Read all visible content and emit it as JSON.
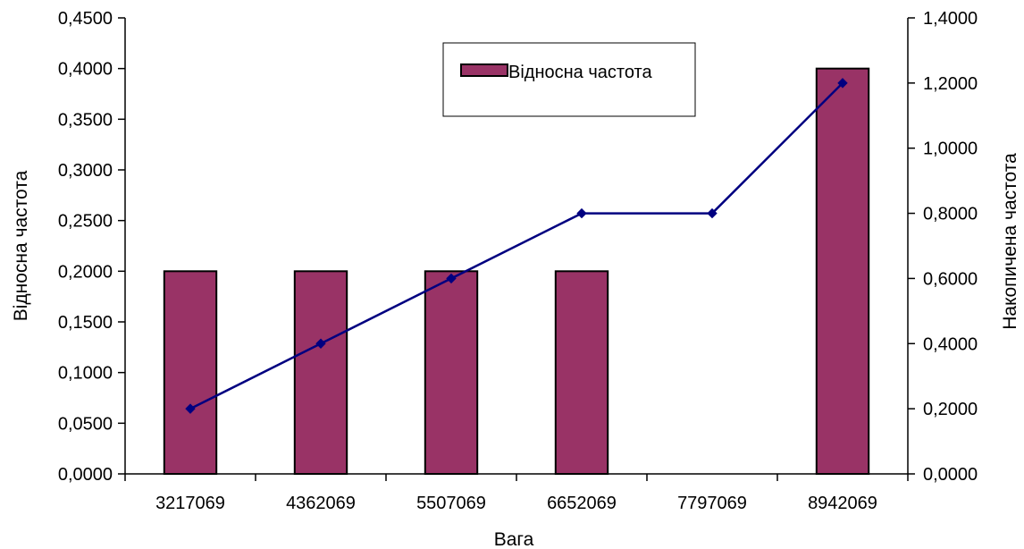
{
  "chart_data": {
    "type": "bar",
    "categories": [
      "3217069",
      "4362069",
      "5507069",
      "6652069",
      "7797069",
      "8942069"
    ],
    "series": [
      {
        "name": "Відносна частота",
        "type": "bar",
        "axis": "left",
        "values": [
          0.2,
          0.2,
          0.2,
          0.2,
          0.0,
          0.4
        ]
      },
      {
        "type": "line",
        "axis": "right",
        "values": [
          0.2,
          0.4,
          0.6,
          0.8,
          0.8,
          1.2
        ]
      }
    ],
    "xlabel": "Вага",
    "ylabel": "Відносна частота",
    "y2label": "Накопичена частота",
    "ylim": [
      0,
      0.45
    ],
    "y2lim": [
      0,
      1.4
    ],
    "yticks": [
      "0,0000",
      "0,0500",
      "0,1000",
      "0,1500",
      "0,2000",
      "0,2500",
      "0,3000",
      "0,3500",
      "0,4000",
      "0,4500"
    ],
    "y2ticks": [
      "0,0000",
      "0,2000",
      "0,4000",
      "0,6000",
      "0,8000",
      "1,0000",
      "1,2000",
      "1,4000"
    ],
    "grid": false,
    "legend_position": "top-right",
    "colors": {
      "bar": "#993366",
      "line": "#000080",
      "frame": "#000000"
    }
  }
}
